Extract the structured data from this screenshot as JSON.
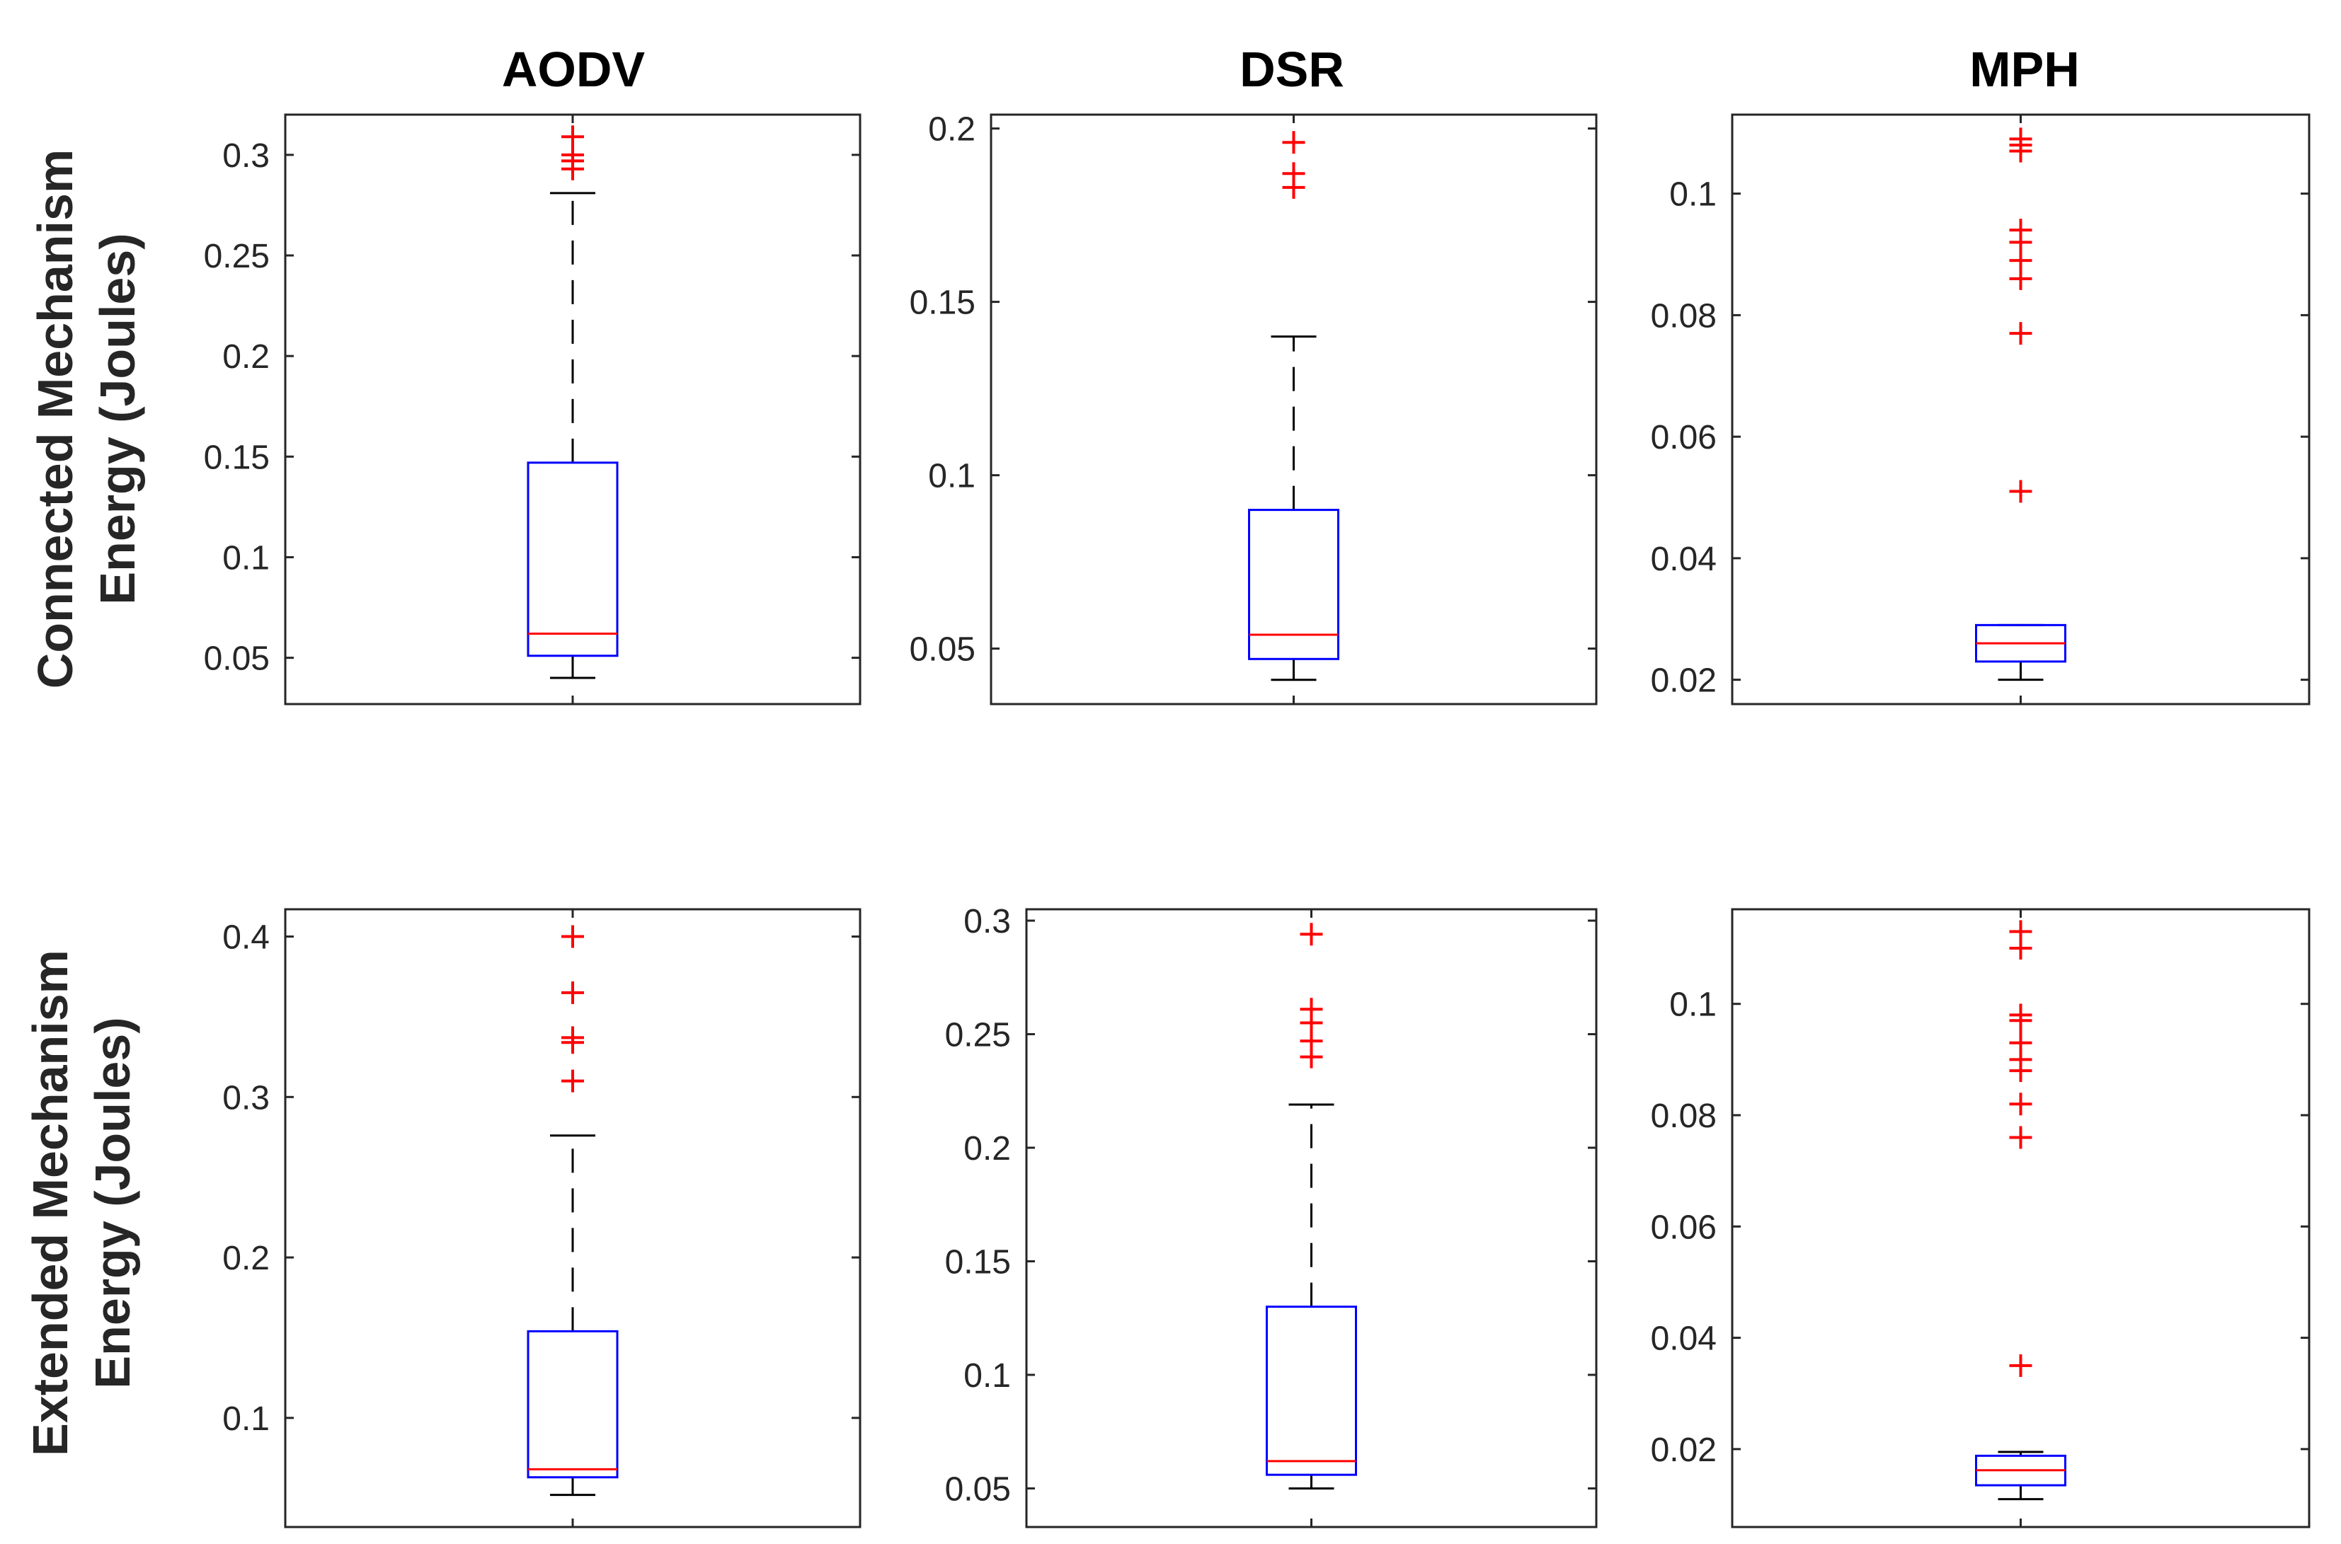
{
  "figure": {
    "column_titles": [
      "AODV",
      "DSR",
      "MPH"
    ],
    "row_labels": [
      [
        "Connected Mechanism",
        "Energy (Joules)"
      ],
      [
        "Extended Mechanism",
        "Energy (Joules)"
      ]
    ],
    "colors": {
      "box": "#0000ff",
      "median": "#ff0000",
      "whisker": "#000000",
      "outlier": "#ff0000",
      "axes": "#262626"
    }
  },
  "chart_data": [
    {
      "type": "box",
      "row": "Connected Mechanism",
      "column": "AODV",
      "ylim": [
        0.027,
        0.32
      ],
      "yticks": [
        0.05,
        0.1,
        0.15,
        0.2,
        0.25,
        0.3
      ],
      "ytick_labels": [
        "0.05",
        "0.1",
        "0.15",
        "0.2",
        "0.25",
        "0.3"
      ],
      "whisker_low": 0.04,
      "q1": 0.051,
      "median": 0.062,
      "q3": 0.147,
      "whisker_high": 0.281,
      "outliers": [
        0.293,
        0.297,
        0.3,
        0.309
      ]
    },
    {
      "type": "box",
      "row": "Connected Mechanism",
      "column": "DSR",
      "ylim": [
        0.034,
        0.204
      ],
      "yticks": [
        0.05,
        0.1,
        0.15,
        0.2
      ],
      "ytick_labels": [
        "0.05",
        "0.1",
        "0.15",
        "0.2"
      ],
      "whisker_low": 0.041,
      "q1": 0.047,
      "median": 0.054,
      "q3": 0.09,
      "whisker_high": 0.14,
      "outliers": [
        0.183,
        0.187,
        0.196
      ]
    },
    {
      "type": "box",
      "row": "Connected Mechanism",
      "column": "MPH",
      "ylim": [
        0.016,
        0.113
      ],
      "yticks": [
        0.02,
        0.04,
        0.06,
        0.08,
        0.1
      ],
      "ytick_labels": [
        "0.02",
        "0.04",
        "0.06",
        "0.08",
        "0.1"
      ],
      "whisker_low": 0.02,
      "q1": 0.023,
      "median": 0.026,
      "q3": 0.029,
      "whisker_high": 0.029,
      "outliers": [
        0.051,
        0.077,
        0.086,
        0.089,
        0.092,
        0.094,
        0.107,
        0.108,
        0.109
      ]
    },
    {
      "type": "box",
      "row": "Extended Mechanism",
      "column": "AODV",
      "ylim": [
        0.032,
        0.417
      ],
      "yticks": [
        0.1,
        0.2,
        0.3,
        0.4
      ],
      "ytick_labels": [
        "0.1",
        "0.2",
        "0.3",
        "0.4"
      ],
      "whisker_low": 0.052,
      "q1": 0.063,
      "median": 0.068,
      "q3": 0.154,
      "whisker_high": 0.276,
      "outliers": [
        0.31,
        0.334,
        0.337,
        0.365,
        0.4
      ]
    },
    {
      "type": "box",
      "row": "Extended Mechanism",
      "column": "DSR",
      "ylim": [
        0.033,
        0.305
      ],
      "yticks": [
        0.05,
        0.1,
        0.15,
        0.2,
        0.25,
        0.3
      ],
      "ytick_labels": [
        "0.05",
        "0.1",
        "0.15",
        "0.2",
        "0.25",
        "0.3"
      ],
      "whisker_low": 0.05,
      "q1": 0.056,
      "median": 0.062,
      "q3": 0.13,
      "whisker_high": 0.219,
      "outliers": [
        0.24,
        0.247,
        0.255,
        0.261,
        0.294
      ]
    },
    {
      "type": "box",
      "row": "Extended Mechanism",
      "column": "MPH",
      "ylim": [
        0.006,
        0.117
      ],
      "yticks": [
        0.02,
        0.04,
        0.06,
        0.08,
        0.1
      ],
      "ytick_labels": [
        "0.02",
        "0.04",
        "0.06",
        "0.08",
        "0.1"
      ],
      "whisker_low": 0.011,
      "q1": 0.0135,
      "median": 0.0162,
      "q3": 0.0188,
      "whisker_high": 0.0195,
      "outliers": [
        0.035,
        0.076,
        0.082,
        0.088,
        0.09,
        0.093,
        0.097,
        0.098,
        0.11,
        0.113
      ]
    }
  ]
}
